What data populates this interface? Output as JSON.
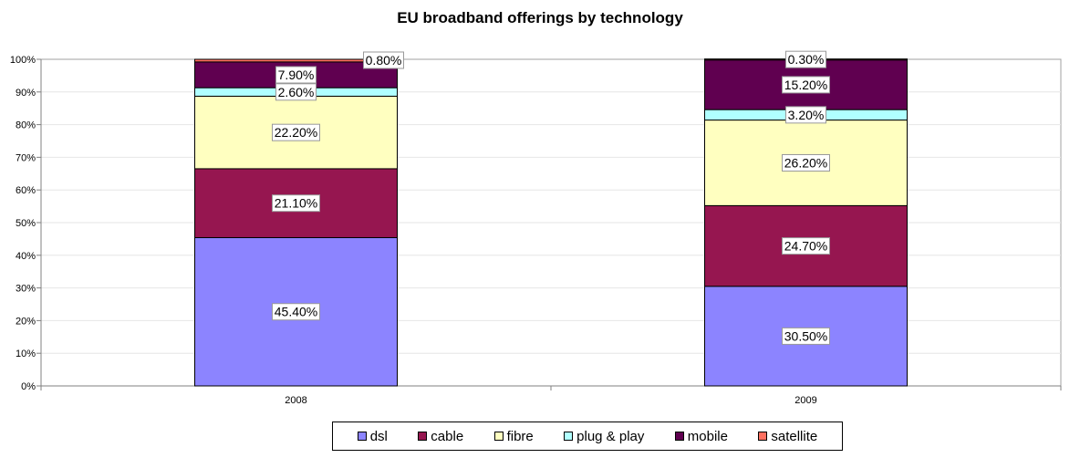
{
  "chart_data": {
    "type": "bar",
    "stacked": true,
    "title": "EU broadband offerings by technology",
    "categories": [
      "2008",
      "2009"
    ],
    "y_ticks": [
      "0%",
      "10%",
      "20%",
      "30%",
      "40%",
      "50%",
      "60%",
      "70%",
      "80%",
      "90%",
      "100%"
    ],
    "ylim": [
      0,
      100
    ],
    "grid": true,
    "legend_position": "bottom",
    "series": [
      {
        "name": "dsl",
        "color": "#8c84ff",
        "values": [
          45.4,
          30.5
        ],
        "labels": [
          "45.40%",
          "30.50%"
        ]
      },
      {
        "name": "cable",
        "color": "#961650",
        "values": [
          21.1,
          24.7
        ],
        "labels": [
          "21.10%",
          "24.70%"
        ]
      },
      {
        "name": "fibre",
        "color": "#ffffc0",
        "values": [
          22.2,
          26.2
        ],
        "labels": [
          "22.20%",
          "26.20%"
        ]
      },
      {
        "name": "plug & play",
        "color": "#b0ffff",
        "values": [
          2.6,
          3.2
        ],
        "labels": [
          "2.60%",
          "3.20%"
        ]
      },
      {
        "name": "mobile",
        "color": "#600050",
        "values": [
          7.9,
          15.2
        ],
        "labels": [
          "7.90%",
          "15.20%"
        ]
      },
      {
        "name": "satellite",
        "color": "#ff7060",
        "values": [
          0.8,
          0.3
        ],
        "labels": [
          "0.80%",
          "0.30%"
        ]
      }
    ]
  }
}
